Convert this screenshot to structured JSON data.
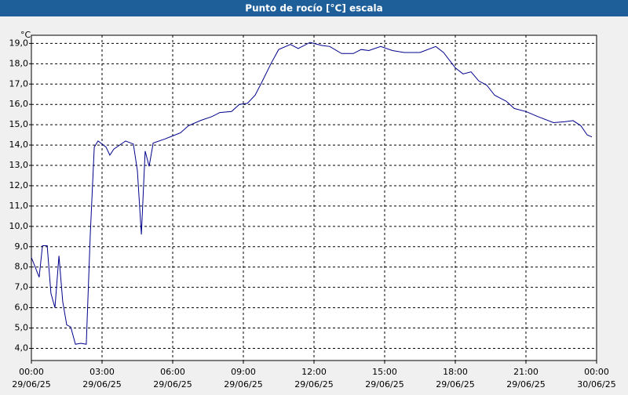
{
  "chart_data": {
    "type": "line",
    "title": "Punto de rocío [°C] escala",
    "ylabel": "°C",
    "x": [
      0,
      0.33,
      0.47,
      0.67,
      0.83,
      1.0,
      1.17,
      1.33,
      1.5,
      1.67,
      1.87,
      2.1,
      2.33,
      2.5,
      2.67,
      2.83,
      3.17,
      3.33,
      3.5,
      4.0,
      4.33,
      4.5,
      4.67,
      4.83,
      5.0,
      5.17,
      5.67,
      6.0,
      6.33,
      6.67,
      7.17,
      7.67,
      8.0,
      8.5,
      8.83,
      9.17,
      9.5,
      9.83,
      10.17,
      10.5,
      11.0,
      11.33,
      11.83,
      12.33,
      12.67,
      13.17,
      13.67,
      14.0,
      14.33,
      14.83,
      15.33,
      15.83,
      16.5,
      17.17,
      17.5,
      18.0,
      18.33,
      18.67,
      19.0,
      19.33,
      19.67,
      20.17,
      20.5,
      21.0,
      21.5,
      22.17,
      22.67,
      23.0,
      23.33,
      23.6,
      23.8
    ],
    "series": [
      {
        "name": "Punto de rocío",
        "color": "#00008b",
        "values": [
          8.47,
          7.5,
          9.05,
          9.05,
          6.7,
          6.0,
          8.55,
          6.3,
          5.15,
          5.05,
          4.2,
          4.25,
          4.2,
          9.6,
          13.9,
          14.2,
          13.9,
          13.5,
          13.8,
          14.2,
          14.05,
          12.75,
          9.6,
          13.7,
          12.95,
          14.1,
          14.3,
          14.45,
          14.6,
          14.95,
          15.2,
          15.4,
          15.6,
          15.65,
          16.0,
          16.05,
          16.45,
          17.2,
          18.0,
          18.7,
          18.95,
          18.75,
          19.05,
          18.9,
          18.85,
          18.5,
          18.5,
          18.7,
          18.65,
          18.85,
          18.65,
          18.55,
          18.55,
          18.85,
          18.55,
          17.8,
          17.5,
          17.6,
          17.15,
          16.95,
          16.45,
          16.15,
          15.8,
          15.65,
          15.4,
          15.1,
          15.15,
          15.2,
          14.95,
          14.5,
          14.4
        ]
      }
    ],
    "xlim": [
      0,
      24
    ],
    "xticks": [
      {
        "value": 0,
        "label": "00:00"
      },
      {
        "value": 3,
        "label": "03:00"
      },
      {
        "value": 6,
        "label": "06:00"
      },
      {
        "value": 9,
        "label": "09:00"
      },
      {
        "value": 12,
        "label": "12:00"
      },
      {
        "value": 15,
        "label": "15:00"
      },
      {
        "value": 18,
        "label": "18:00"
      },
      {
        "value": 21,
        "label": "21:00"
      },
      {
        "value": 24,
        "label": "00:00"
      }
    ],
    "xtick_dates": [
      "29/06/25",
      "29/06/25",
      "29/06/25",
      "29/06/25",
      "29/06/25",
      "29/06/25",
      "29/06/25",
      "29/06/25",
      "30/06/25"
    ],
    "ylim": [
      3.4,
      19.4
    ],
    "yticks": [
      {
        "value": 4,
        "label": "4,0"
      },
      {
        "value": 5,
        "label": "5,0"
      },
      {
        "value": 6,
        "label": "6,0"
      },
      {
        "value": 7,
        "label": "7,0"
      },
      {
        "value": 8,
        "label": "8,0"
      },
      {
        "value": 9,
        "label": "9,0"
      },
      {
        "value": 10,
        "label": "10,0"
      },
      {
        "value": 11,
        "label": "11,0"
      },
      {
        "value": 12,
        "label": "12,0"
      },
      {
        "value": 13,
        "label": "13,0"
      },
      {
        "value": 14,
        "label": "14,0"
      },
      {
        "value": 15,
        "label": "15,0"
      },
      {
        "value": 16,
        "label": "16,0"
      },
      {
        "value": 17,
        "label": "17,0"
      },
      {
        "value": 18,
        "label": "18,0"
      },
      {
        "value": 19,
        "label": "19,0"
      }
    ],
    "grid": true
  }
}
